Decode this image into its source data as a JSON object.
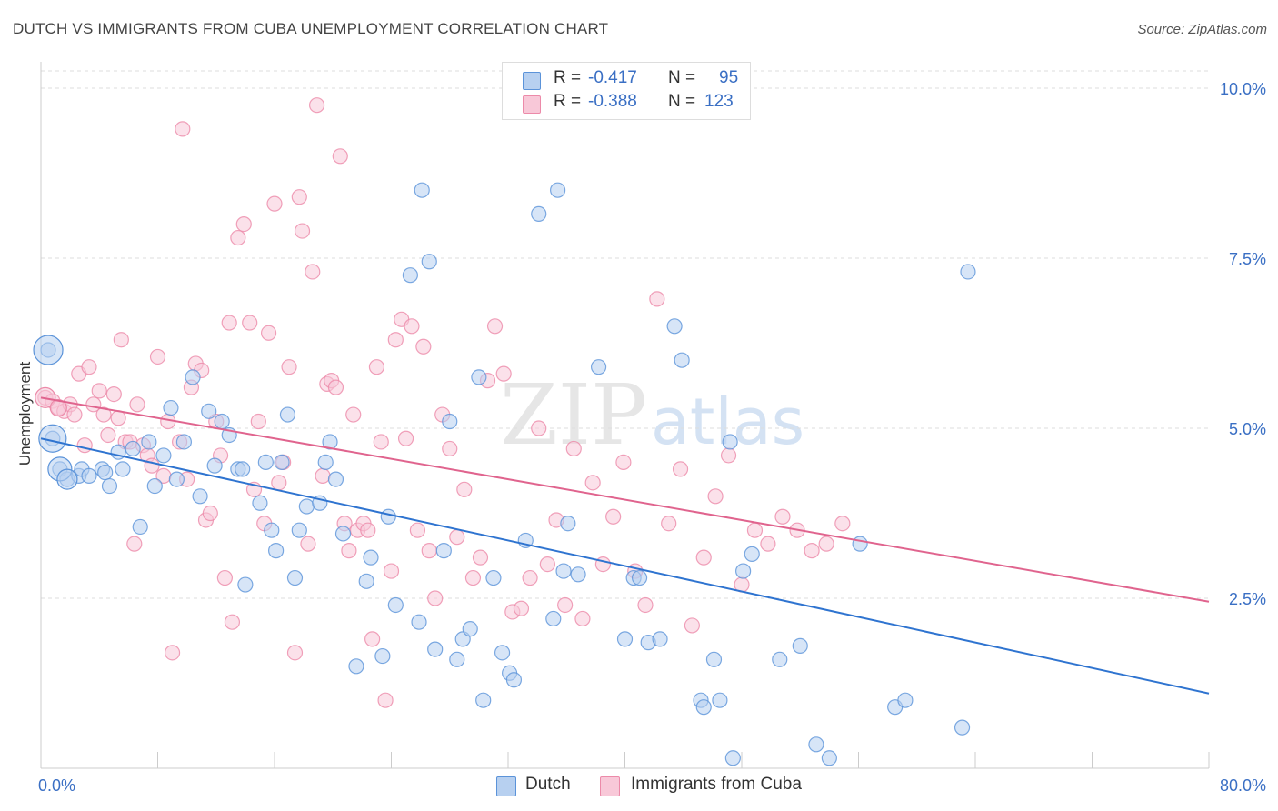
{
  "title": "DUTCH VS IMMIGRANTS FROM CUBA UNEMPLOYMENT CORRELATION CHART",
  "source": "Source: ZipAtlas.com",
  "watermark": "ZIPatlas",
  "legend": {
    "rows": [
      {
        "r_label": "R =",
        "r_value": "-0.417",
        "n_label": "N =",
        "n_value": "95",
        "color": "#7aa6e0"
      },
      {
        "r_label": "R =",
        "r_value": "-0.388",
        "n_label": "N =",
        "n_value": "123",
        "color": "#f09ab6"
      }
    ]
  },
  "bottom_legend": {
    "dutch": "Dutch",
    "cuba": "Immigrants from Cuba"
  },
  "chart_data": {
    "type": "scatter",
    "ylabel": "Unemployment",
    "xlim": [
      0,
      80
    ],
    "ylim": [
      0,
      10.5
    ],
    "x_tick_labels": [
      "0.0%",
      "80.0%"
    ],
    "y_ticks": [
      2.5,
      5.0,
      7.5,
      10.0
    ],
    "y_tick_labels": [
      "2.5%",
      "5.0%",
      "7.5%",
      "10.0%"
    ],
    "colors": {
      "dutch": "#5b93d9",
      "dutch_fill": "#b7d0f0",
      "cuba": "#ec8aa9",
      "cuba_fill": "#f8c8d8",
      "dutch_line": "#2f74d0",
      "cuba_line": "#e0648e"
    },
    "series": [
      {
        "name": "Dutch",
        "trend": [
          [
            0,
            4.85
          ],
          [
            80,
            1.1
          ]
        ],
        "points": [
          [
            0.5,
            6.15
          ],
          [
            0.8,
            4.85
          ],
          [
            1.3,
            4.4
          ],
          [
            1.8,
            4.25
          ],
          [
            2.6,
            4.3
          ],
          [
            2.8,
            4.4
          ],
          [
            3.3,
            4.3
          ],
          [
            4.2,
            4.4
          ],
          [
            4.4,
            4.35
          ],
          [
            4.7,
            4.15
          ],
          [
            5.3,
            4.65
          ],
          [
            5.6,
            4.4
          ],
          [
            6.3,
            4.7
          ],
          [
            6.8,
            3.55
          ],
          [
            7.4,
            4.8
          ],
          [
            7.8,
            4.15
          ],
          [
            8.4,
            4.6
          ],
          [
            8.9,
            5.3
          ],
          [
            9.3,
            4.25
          ],
          [
            9.8,
            4.8
          ],
          [
            10.4,
            5.75
          ],
          [
            10.9,
            4.0
          ],
          [
            11.5,
            5.25
          ],
          [
            11.9,
            4.45
          ],
          [
            12.4,
            5.1
          ],
          [
            12.9,
            4.9
          ],
          [
            13.5,
            4.4
          ],
          [
            13.8,
            4.4
          ],
          [
            14.0,
            2.7
          ],
          [
            15.0,
            3.9
          ],
          [
            15.4,
            4.5
          ],
          [
            15.8,
            3.5
          ],
          [
            16.1,
            3.2
          ],
          [
            16.5,
            4.5
          ],
          [
            16.9,
            5.2
          ],
          [
            17.4,
            2.8
          ],
          [
            17.7,
            3.5
          ],
          [
            18.2,
            3.85
          ],
          [
            19.1,
            3.9
          ],
          [
            19.5,
            4.5
          ],
          [
            19.8,
            4.8
          ],
          [
            20.2,
            4.25
          ],
          [
            20.7,
            3.45
          ],
          [
            21.6,
            1.5
          ],
          [
            22.3,
            2.75
          ],
          [
            22.6,
            3.1
          ],
          [
            23.4,
            1.65
          ],
          [
            23.8,
            3.7
          ],
          [
            24.3,
            2.4
          ],
          [
            25.3,
            7.25
          ],
          [
            25.9,
            2.15
          ],
          [
            26.1,
            8.5
          ],
          [
            26.6,
            7.45
          ],
          [
            27.0,
            1.75
          ],
          [
            27.6,
            3.2
          ],
          [
            28.0,
            5.1
          ],
          [
            28.5,
            1.6
          ],
          [
            28.9,
            1.9
          ],
          [
            29.4,
            2.05
          ],
          [
            30.0,
            5.75
          ],
          [
            30.3,
            1.0
          ],
          [
            31.0,
            2.8
          ],
          [
            31.6,
            1.7
          ],
          [
            32.1,
            1.4
          ],
          [
            32.4,
            1.3
          ],
          [
            33.2,
            3.35
          ],
          [
            34.1,
            8.15
          ],
          [
            35.1,
            2.2
          ],
          [
            35.4,
            8.5
          ],
          [
            35.8,
            2.9
          ],
          [
            36.1,
            3.6
          ],
          [
            36.8,
            2.85
          ],
          [
            38.2,
            5.9
          ],
          [
            40.0,
            1.9
          ],
          [
            40.6,
            2.8
          ],
          [
            41.0,
            2.8
          ],
          [
            41.6,
            1.85
          ],
          [
            42.4,
            1.9
          ],
          [
            43.4,
            6.5
          ],
          [
            43.9,
            6.0
          ],
          [
            45.2,
            1.0
          ],
          [
            45.4,
            0.9
          ],
          [
            46.1,
            1.6
          ],
          [
            46.5,
            1.0
          ],
          [
            47.2,
            4.8
          ],
          [
            47.4,
            0.15
          ],
          [
            48.1,
            2.9
          ],
          [
            48.7,
            3.15
          ],
          [
            50.6,
            1.6
          ],
          [
            52.0,
            1.8
          ],
          [
            53.1,
            0.35
          ],
          [
            54.0,
            0.15
          ],
          [
            56.1,
            3.3
          ],
          [
            58.5,
            0.9
          ],
          [
            59.2,
            1.0
          ],
          [
            63.1,
            0.6
          ],
          [
            63.5,
            7.3
          ]
        ],
        "big": [
          [
            0.5,
            6.15,
            16
          ],
          [
            0.8,
            4.85,
            15
          ],
          [
            1.3,
            4.4,
            13
          ],
          [
            1.8,
            4.25,
            11
          ]
        ]
      },
      {
        "name": "Immigrants from Cuba",
        "trend": [
          [
            0,
            5.45
          ],
          [
            80,
            2.45
          ]
        ],
        "points": [
          [
            0.3,
            5.45
          ],
          [
            0.8,
            5.4
          ],
          [
            1.2,
            5.3
          ],
          [
            1.6,
            5.25
          ],
          [
            2.0,
            5.35
          ],
          [
            2.3,
            5.2
          ],
          [
            2.6,
            5.8
          ],
          [
            3.0,
            4.75
          ],
          [
            3.3,
            5.9
          ],
          [
            3.6,
            5.35
          ],
          [
            4.0,
            5.55
          ],
          [
            4.3,
            5.2
          ],
          [
            4.6,
            4.9
          ],
          [
            5.0,
            5.5
          ],
          [
            5.3,
            5.15
          ],
          [
            5.5,
            6.3
          ],
          [
            5.8,
            4.8
          ],
          [
            6.1,
            4.8
          ],
          [
            6.4,
            3.3
          ],
          [
            6.6,
            5.35
          ],
          [
            7.0,
            4.75
          ],
          [
            7.3,
            4.6
          ],
          [
            7.6,
            4.45
          ],
          [
            8.0,
            6.05
          ],
          [
            8.4,
            4.3
          ],
          [
            8.7,
            5.1
          ],
          [
            9.0,
            1.7
          ],
          [
            9.5,
            4.8
          ],
          [
            9.7,
            9.4
          ],
          [
            10.0,
            4.25
          ],
          [
            10.3,
            5.6
          ],
          [
            10.6,
            5.95
          ],
          [
            11.0,
            5.85
          ],
          [
            11.3,
            3.65
          ],
          [
            11.6,
            3.75
          ],
          [
            12.0,
            5.1
          ],
          [
            12.3,
            4.6
          ],
          [
            12.6,
            2.8
          ],
          [
            12.9,
            6.55
          ],
          [
            13.1,
            2.15
          ],
          [
            13.5,
            7.8
          ],
          [
            13.9,
            8.0
          ],
          [
            14.3,
            6.55
          ],
          [
            14.6,
            4.1
          ],
          [
            14.9,
            5.1
          ],
          [
            15.3,
            3.6
          ],
          [
            15.6,
            6.4
          ],
          [
            16.0,
            8.3
          ],
          [
            16.3,
            4.2
          ],
          [
            16.6,
            4.5
          ],
          [
            17.0,
            5.9
          ],
          [
            17.4,
            1.7
          ],
          [
            17.7,
            8.4
          ],
          [
            17.9,
            7.9
          ],
          [
            18.3,
            3.3
          ],
          [
            18.6,
            7.3
          ],
          [
            18.9,
            9.75
          ],
          [
            19.3,
            4.3
          ],
          [
            19.6,
            5.65
          ],
          [
            19.9,
            5.7
          ],
          [
            20.2,
            5.6
          ],
          [
            20.5,
            9.0
          ],
          [
            20.8,
            3.6
          ],
          [
            21.1,
            3.2
          ],
          [
            21.4,
            5.2
          ],
          [
            21.7,
            3.5
          ],
          [
            22.1,
            3.6
          ],
          [
            22.4,
            3.5
          ],
          [
            22.7,
            1.9
          ],
          [
            23.0,
            5.9
          ],
          [
            23.3,
            4.8
          ],
          [
            23.6,
            1.0
          ],
          [
            24.0,
            2.9
          ],
          [
            24.3,
            6.3
          ],
          [
            24.7,
            6.6
          ],
          [
            25.0,
            4.85
          ],
          [
            25.4,
            6.5
          ],
          [
            25.8,
            3.5
          ],
          [
            26.2,
            6.2
          ],
          [
            26.6,
            3.2
          ],
          [
            27.0,
            2.5
          ],
          [
            27.5,
            5.2
          ],
          [
            28.0,
            4.7
          ],
          [
            28.5,
            3.4
          ],
          [
            29.0,
            4.1
          ],
          [
            29.6,
            2.8
          ],
          [
            30.1,
            3.1
          ],
          [
            30.6,
            5.7
          ],
          [
            31.1,
            6.5
          ],
          [
            31.7,
            5.8
          ],
          [
            32.3,
            2.3
          ],
          [
            32.9,
            2.35
          ],
          [
            33.5,
            2.8
          ],
          [
            34.1,
            5.0
          ],
          [
            34.7,
            3.0
          ],
          [
            35.3,
            3.65
          ],
          [
            35.9,
            2.4
          ],
          [
            36.5,
            4.7
          ],
          [
            37.1,
            2.2
          ],
          [
            37.8,
            4.2
          ],
          [
            38.5,
            3.0
          ],
          [
            39.2,
            3.7
          ],
          [
            39.9,
            4.5
          ],
          [
            40.7,
            2.9
          ],
          [
            41.4,
            2.4
          ],
          [
            42.2,
            6.9
          ],
          [
            43.0,
            3.6
          ],
          [
            43.8,
            4.4
          ],
          [
            44.6,
            2.1
          ],
          [
            45.4,
            3.1
          ],
          [
            46.2,
            4.0
          ],
          [
            47.1,
            4.6
          ],
          [
            48.0,
            2.7
          ],
          [
            48.9,
            3.5
          ],
          [
            49.8,
            3.3
          ],
          [
            50.8,
            3.7
          ],
          [
            51.8,
            3.5
          ],
          [
            52.8,
            3.2
          ],
          [
            53.8,
            3.3
          ],
          [
            54.9,
            3.6
          ]
        ],
        "big": [
          [
            0.3,
            5.45,
            11
          ],
          [
            1.2,
            5.3,
            9
          ]
        ]
      }
    ]
  }
}
